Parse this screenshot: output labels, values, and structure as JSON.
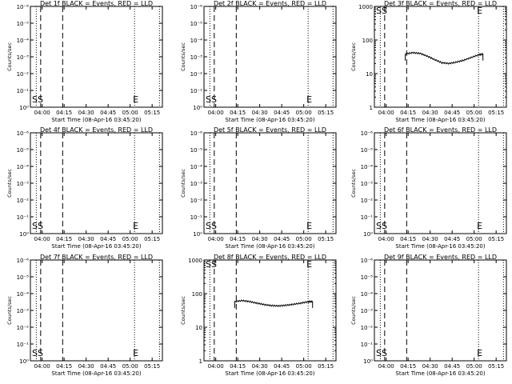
{
  "common": {
    "x_ticks": [
      "04:00",
      "04:15",
      "04:30",
      "04:45",
      "05:00",
      "05:15"
    ],
    "x_label": "Start Time (08-Apr-16 03:45:20)",
    "y_label": "Counts/sec",
    "log_tick_labels": [
      "10⁰",
      "10⁻¹",
      "10⁻²",
      "10⁻³",
      "10⁻⁴",
      "10⁻⁵",
      "10⁻⁶"
    ],
    "lin_tick_labels": [
      "1",
      "10",
      "100",
      "1000"
    ],
    "marker_s": "S",
    "marker_e": "E",
    "curve_color": "#000000",
    "axis_color": "#000000"
  },
  "chart_data": [
    {
      "type": "line",
      "title": "Det 1f BLACK = Events, RED = LLD",
      "ylabel": "Counts/sec",
      "xlabel": "Start Time (08-Apr-16 03:45:20)",
      "x_range": [
        "03:52",
        "05:22"
      ],
      "y_scale": "empty",
      "series": []
    },
    {
      "type": "line",
      "title": "Det 2f BLACK = Events, RED = LLD",
      "ylabel": "Counts/sec",
      "xlabel": "Start Time (08-Apr-16 03:45:20)",
      "x_range": [
        "03:52",
        "05:22"
      ],
      "y_scale": "empty",
      "series": []
    },
    {
      "type": "line",
      "title": "Det 3f BLACK = Events, RED = LLD",
      "ylabel": "Counts/sec",
      "xlabel": "Start Time (08-Apr-16 03:45:20)",
      "x_range": [
        "03:52",
        "05:22"
      ],
      "y_scale": "log",
      "ylim": [
        1,
        1000
      ],
      "series": [
        {
          "x": [
            "04:13",
            "04:18",
            "04:23",
            "04:28",
            "04:33",
            "04:38",
            "04:43",
            "04:48",
            "04:53",
            "04:58",
            "05:03",
            "05:06"
          ],
          "y": [
            38,
            42,
            40,
            33,
            26,
            21,
            20,
            22,
            25,
            30,
            36,
            38
          ]
        }
      ]
    },
    {
      "type": "line",
      "title": "Det 4f BLACK = Events, RED = LLD",
      "ylabel": "Counts/sec",
      "xlabel": "Start Time (08-Apr-16 03:45:20)",
      "x_range": [
        "03:52",
        "05:22"
      ],
      "y_scale": "empty",
      "series": []
    },
    {
      "type": "line",
      "title": "Det 5f BLACK = Events, RED = LLD",
      "ylabel": "Counts/sec",
      "xlabel": "Start Time (08-Apr-16 03:45:20)",
      "x_range": [
        "03:52",
        "05:22"
      ],
      "y_scale": "empty",
      "series": []
    },
    {
      "type": "line",
      "title": "Det 6f BLACK = Events, RED = LLD",
      "ylabel": "Counts/sec",
      "xlabel": "Start Time (08-Apr-16 03:45:20)",
      "x_range": [
        "03:52",
        "05:22"
      ],
      "y_scale": "empty",
      "series": []
    },
    {
      "type": "line",
      "title": "Det 7f BLACK = Events, RED = LLD",
      "ylabel": "Counts/sec",
      "xlabel": "Start Time (08-Apr-16 03:45:20)",
      "x_range": [
        "03:52",
        "05:22"
      ],
      "y_scale": "empty",
      "series": []
    },
    {
      "type": "line",
      "title": "Det 8f BLACK = Events, RED = LLD",
      "ylabel": "Counts/sec",
      "xlabel": "Start Time (08-Apr-16 03:45:20)",
      "x_range": [
        "03:52",
        "05:22"
      ],
      "y_scale": "log",
      "ylim": [
        1,
        1000
      ],
      "series": [
        {
          "x": [
            "04:13",
            "04:18",
            "04:23",
            "04:28",
            "04:33",
            "04:38",
            "04:43",
            "04:48",
            "04:53",
            "04:58",
            "05:03",
            "05:06"
          ],
          "y": [
            58,
            62,
            58,
            52,
            47,
            44,
            43,
            45,
            48,
            52,
            57,
            58
          ]
        }
      ]
    },
    {
      "type": "line",
      "title": "Det 9f BLACK = Events, RED = LLD",
      "ylabel": "Counts/sec",
      "xlabel": "Start Time (08-Apr-16 03:45:20)",
      "x_range": [
        "03:52",
        "05:22"
      ],
      "y_scale": "empty",
      "series": []
    }
  ],
  "event_lines": {
    "solid_dashed": [
      "03:59",
      "04:14"
    ],
    "dotted": [
      "03:56",
      "05:03",
      "05:20"
    ]
  }
}
